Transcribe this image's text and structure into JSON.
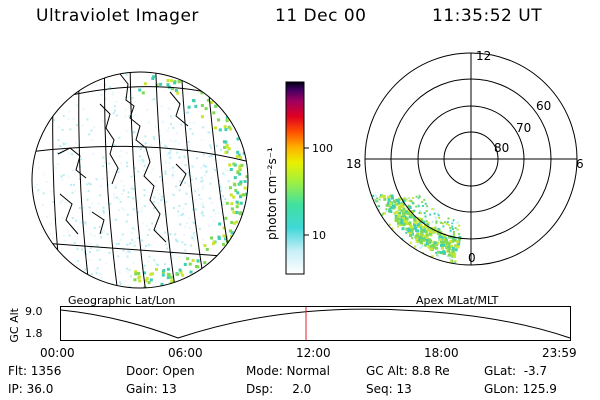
{
  "header": {
    "instrument": "Ultraviolet Imager",
    "date": "11 Dec 00",
    "time": "11:35:52 UT"
  },
  "colorbar": {
    "unit_label": "photon cm⁻²s⁻¹",
    "ticks": [
      "100",
      "10"
    ]
  },
  "geo_panel": {
    "label": "Geographic Lat/Lon"
  },
  "polar_panel": {
    "label": "Apex MLat/MLT",
    "mlt_labels": {
      "top": "12",
      "left": "18",
      "right": "6",
      "bottom": "0"
    },
    "lat_labels": [
      "60",
      "70",
      "80"
    ]
  },
  "orbit": {
    "ylabel": "GC Alt",
    "y_ticks": [
      "9.0",
      "1.8"
    ],
    "x_ticks": [
      "00:00",
      "06:00",
      "12:00",
      "18:00",
      "23:59"
    ],
    "current_time_marker": "11:35:52"
  },
  "status": {
    "row1": {
      "flt": "Flt: 1356",
      "door": "Door: Open",
      "mode": "Mode: Normal",
      "gc_alt": "GC Alt: 8.8 Re",
      "glat": "GLat:  -3.7"
    },
    "row2": {
      "ip": "IP: 36.0",
      "gain": "Gain: 13",
      "dsp": "Dsp:     2.0",
      "seq": "Seq: 13",
      "glon": "GLon: 125.9"
    }
  },
  "colors": {
    "emission_low": "#3fd0b0",
    "emission_mid": "#7ed957",
    "emission_high": "#c8e632",
    "orbit_marker": "#e02020"
  }
}
